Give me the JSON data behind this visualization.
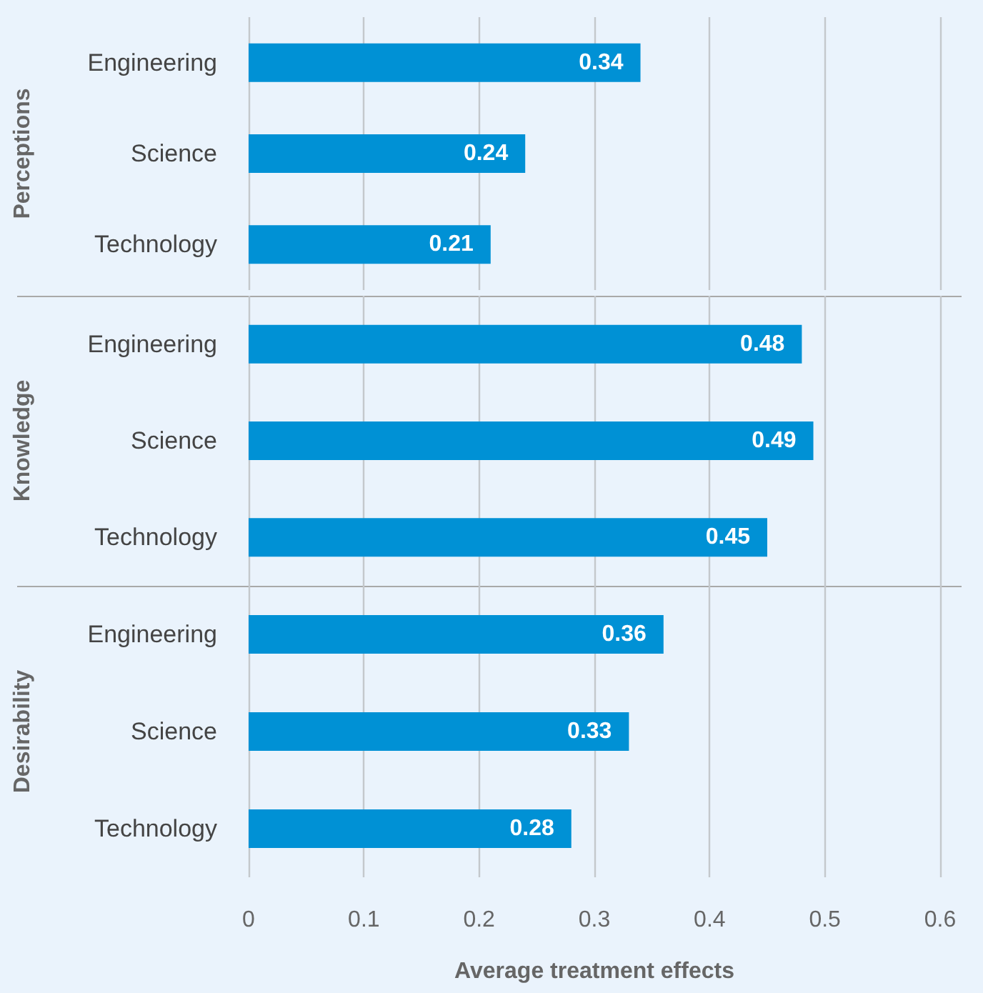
{
  "chart_data": [
    {
      "type": "bar",
      "orientation": "horizontal",
      "ylabel": "Perceptions",
      "categories": [
        "Engineering",
        "Science",
        "Technology"
      ],
      "values": [
        0.34,
        0.24,
        0.21
      ],
      "color": "#0091d5",
      "data_labels": true,
      "xlim": [
        0,
        0.6
      ],
      "xticks": [
        0,
        0.1,
        0.2,
        0.3,
        0.4,
        0.5,
        0.6
      ],
      "grid": "x",
      "tick_labels": "y"
    },
    {
      "type": "bar",
      "orientation": "horizontal",
      "ylabel": "Knowledge",
      "categories": [
        "Engineering",
        "Science",
        "Technology"
      ],
      "values": [
        0.48,
        0.49,
        0.45
      ],
      "color": "#0091d5",
      "data_labels": true,
      "xlim": [
        0,
        0.6
      ],
      "xticks": [
        0,
        0.1,
        0.2,
        0.3,
        0.4,
        0.5,
        0.6
      ],
      "grid": "x",
      "tick_labels": "y"
    },
    {
      "type": "bar",
      "orientation": "horizontal",
      "ylabel": "Desirability",
      "xlabel": "Average treatment effects",
      "categories": [
        "Engineering",
        "Science",
        "Technology"
      ],
      "values": [
        0.36,
        0.33,
        0.28
      ],
      "color": "#0091d5",
      "data_labels": true,
      "xlim": [
        0,
        0.6
      ],
      "xticks": [
        0,
        0.1,
        0.2,
        0.3,
        0.4,
        0.5,
        0.6
      ],
      "grid": "x"
    }
  ]
}
